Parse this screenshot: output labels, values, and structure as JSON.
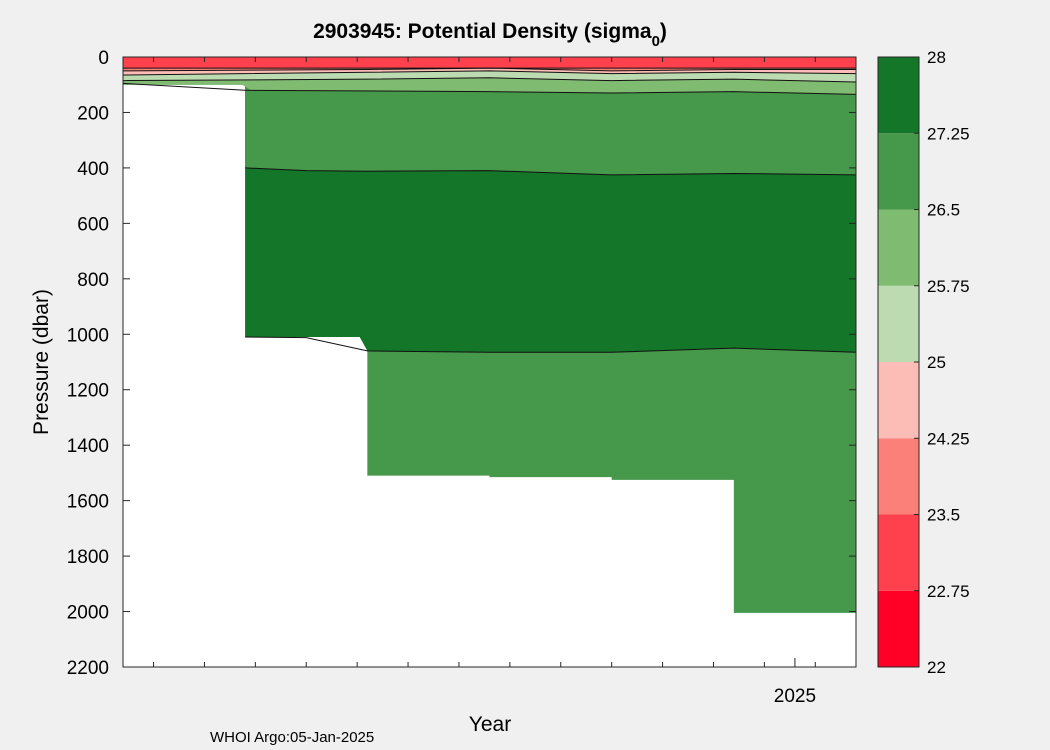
{
  "chart_data": {
    "type": "heatmap",
    "title_main": "2903945: Potential Density (sigma",
    "title_sub": "0",
    "title_end": ")",
    "xlabel": "Year",
    "ylabel": "Pressure (dbar)",
    "credit": "WHOI Argo:05-Jan-2025",
    "ylim": [
      0,
      2200
    ],
    "y_reversed": true,
    "y_ticks": [
      "0",
      "200",
      "400",
      "600",
      "800",
      "1000",
      "1200",
      "1400",
      "1600",
      "1800",
      "2000",
      "2200"
    ],
    "x_tick_labels": [
      {
        "label": "2025",
        "x": 2025.0
      }
    ],
    "xlim": [
      2023.9,
      2025.1
    ],
    "colorbar": {
      "levels": [
        "22",
        "22.75",
        "23.5",
        "24.25",
        "25",
        "25.75",
        "26.5",
        "27.25",
        "28"
      ],
      "colors": [
        "#ff0026",
        "#fe414d",
        "#fb8079",
        "#fdbdb7",
        "#bddbb0",
        "#80bb72",
        "#46984a",
        "#137629"
      ]
    },
    "profiles": [
      {
        "x": 2023.9,
        "max_depth": 100
      },
      {
        "x": 2024.1,
        "max_depth": 1010
      },
      {
        "x": 2024.3,
        "max_depth": 1510
      },
      {
        "x": 2024.5,
        "max_depth": 1515
      },
      {
        "x": 2024.7,
        "max_depth": 1525
      },
      {
        "x": 2024.9,
        "max_depth": 2005
      }
    ],
    "contours": [
      {
        "level": "27.25",
        "x": [
          2024.1,
          2024.2,
          2024.3,
          2024.5,
          2024.7,
          2024.9,
          2025.1
        ],
        "depth": [
          1010,
          1012,
          1060,
          1065,
          1065,
          1050,
          1065
        ]
      },
      {
        "level": "26.5",
        "x": [
          2024.1,
          2024.2,
          2024.3,
          2024.5,
          2024.7,
          2024.9,
          2025.1
        ],
        "depth": [
          400,
          410,
          412,
          410,
          425,
          420,
          425
        ]
      },
      {
        "level": "25.75",
        "x": [
          2023.9,
          2024.1,
          2024.5,
          2024.7,
          2024.9,
          2025.1
        ],
        "depth": [
          95,
          120,
          125,
          130,
          125,
          135
        ]
      },
      {
        "level": "25",
        "x": [
          2023.9,
          2024.3,
          2024.5,
          2024.7,
          2024.9,
          2025.1
        ],
        "depth": [
          85,
          80,
          75,
          85,
          80,
          90
        ]
      },
      {
        "level": "24.25",
        "x": [
          2023.9,
          2024.3,
          2024.5,
          2024.7,
          2024.9,
          2025.1
        ],
        "depth": [
          65,
          55,
          50,
          60,
          55,
          60
        ]
      },
      {
        "level": "23.5",
        "x": [
          2023.9,
          2024.3,
          2024.5,
          2024.7,
          2024.9,
          2025.1
        ],
        "depth": [
          50,
          45,
          40,
          50,
          45,
          45
        ]
      },
      {
        "level": "22.75",
        "x": [
          2023.9,
          2025.1
        ],
        "depth": [
          40,
          40
        ]
      }
    ]
  }
}
